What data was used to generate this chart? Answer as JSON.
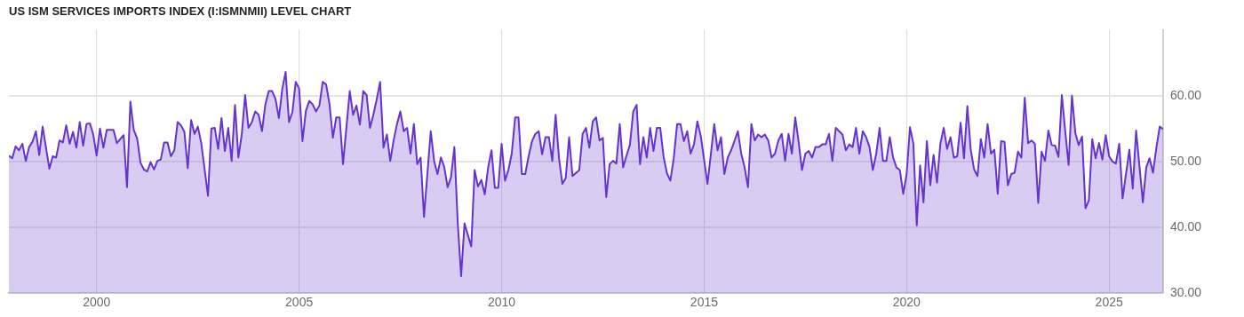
{
  "chart_data": {
    "type": "area",
    "title": "US ISM SERVICES IMPORTS INDEX (I:ISMNMII) LEVEL CHART",
    "x": [
      "1997-11",
      "1997-12",
      "1998-01",
      "1998-02",
      "1998-03",
      "1998-04",
      "1998-05",
      "1998-06",
      "1998-07",
      "1998-08",
      "1998-09",
      "1998-11",
      "1998-12",
      "1999-01",
      "1999-02",
      "1999-03",
      "1999-04",
      "1999-05",
      "1999-06",
      "1999-07",
      "1999-08",
      "1999-09",
      "1999-10",
      "1999-11",
      "1999-12",
      "2000-01",
      "2000-02",
      "2000-03",
      "2000-04",
      "2000-06",
      "2000-07",
      "2000-09",
      "2000-10",
      "2000-11",
      "2000-12",
      "2001-01",
      "2001-02",
      "2001-03",
      "2001-04",
      "2001-05",
      "2001-06",
      "2001-07",
      "2001-08",
      "2001-09",
      "2001-10",
      "2001-11",
      "2001-12",
      "2002-01",
      "2002-02",
      "2002-03",
      "2002-04",
      "2002-05",
      "2002-06",
      "2002-07",
      "2002-08",
      "2002-10",
      "2002-11",
      "2002-12",
      "2003-01",
      "2003-02",
      "2003-03",
      "2003-04",
      "2003-05",
      "2003-06",
      "2003-07",
      "2003-08",
      "2003-09",
      "2003-10",
      "2003-11",
      "2003-12",
      "2004-01",
      "2004-02",
      "2004-03",
      "2004-04",
      "2004-05",
      "2004-06",
      "2004-07",
      "2004-08",
      "2004-09",
      "2004-10",
      "2004-11",
      "2004-12",
      "2005-01",
      "2005-02",
      "2005-03",
      "2005-04",
      "2005-05",
      "2005-06",
      "2005-07",
      "2005-08",
      "2005-09",
      "2005-10",
      "2005-11",
      "2005-12",
      "2006-01",
      "2006-02",
      "2006-04",
      "2006-05",
      "2006-06",
      "2006-07",
      "2006-08",
      "2006-09",
      "2006-10",
      "2006-11",
      "2006-12",
      "2007-01",
      "2007-02",
      "2007-03",
      "2007-04",
      "2007-05",
      "2007-06",
      "2007-07",
      "2007-08",
      "2007-09",
      "2007-10",
      "2007-11",
      "2007-12",
      "2008-01",
      "2008-02",
      "2008-04",
      "2008-05",
      "2008-06",
      "2008-07",
      "2008-08",
      "2008-09",
      "2008-10",
      "2008-11",
      "2008-12",
      "2009-01",
      "2009-02",
      "2009-04",
      "2009-05",
      "2009-06",
      "2009-07",
      "2009-08",
      "2009-09",
      "2009-10",
      "2009-11",
      "2009-12",
      "2010-01",
      "2010-02",
      "2010-03",
      "2010-04",
      "2010-05",
      "2010-06",
      "2010-07",
      "2010-08",
      "2010-09",
      "2010-10",
      "2010-11",
      "2010-12",
      "2011-01",
      "2011-02",
      "2011-03",
      "2011-04",
      "2011-05",
      "2011-06",
      "2011-07",
      "2011-08",
      "2011-09",
      "2011-10",
      "2011-12",
      "2012-01",
      "2012-02",
      "2012-03",
      "2012-04",
      "2012-05",
      "2012-06",
      "2012-07",
      "2012-08",
      "2012-09",
      "2012-10",
      "2012-11",
      "2012-12",
      "2013-01",
      "2013-02",
      "2013-03",
      "2013-04",
      "2013-05",
      "2013-06",
      "2013-07",
      "2013-08",
      "2013-09",
      "2013-10",
      "2013-11",
      "2013-12",
      "2014-01",
      "2014-02",
      "2014-03",
      "2014-04",
      "2014-05",
      "2014-06",
      "2014-07",
      "2014-08",
      "2014-09",
      "2014-10",
      "2014-11",
      "2014-12",
      "2015-02",
      "2015-04",
      "2015-05",
      "2015-06",
      "2015-07",
      "2015-08",
      "2015-09",
      "2015-11",
      "2015-12",
      "2016-01",
      "2016-02",
      "2016-03",
      "2016-04",
      "2016-05",
      "2016-06",
      "2016-07",
      "2016-08",
      "2016-09",
      "2016-10",
      "2016-11",
      "2016-12",
      "2017-01",
      "2017-02",
      "2017-03",
      "2017-04",
      "2017-05",
      "2017-06",
      "2017-07",
      "2017-08",
      "2017-09",
      "2017-10",
      "2017-11",
      "2017-12",
      "2018-01",
      "2018-02",
      "2018-03",
      "2018-04",
      "2018-05",
      "2018-06",
      "2018-07",
      "2018-08",
      "2018-09",
      "2018-10",
      "2018-11",
      "2018-12",
      "2019-01",
      "2019-02",
      "2019-03",
      "2019-04",
      "2019-05",
      "2019-06",
      "2019-07",
      "2019-08",
      "2019-09",
      "2019-10",
      "2019-11",
      "2019-12",
      "2020-01",
      "2020-02",
      "2020-03",
      "2020-04",
      "2020-05",
      "2020-06",
      "2020-07",
      "2020-08",
      "2020-09",
      "2020-10",
      "2020-11",
      "2020-12",
      "2021-01",
      "2021-02",
      "2021-03",
      "2021-04",
      "2021-05",
      "2021-06",
      "2021-07",
      "2021-08",
      "2021-09",
      "2021-10",
      "2021-11",
      "2021-12",
      "2022-01",
      "2022-02",
      "2022-03",
      "2022-04",
      "2022-05",
      "2022-06",
      "2022-07",
      "2022-08",
      "2022-09",
      "2022-10",
      "2022-11",
      "2022-12",
      "2023-01",
      "2023-02",
      "2023-03",
      "2023-04",
      "2023-05",
      "2023-06",
      "2023-07",
      "2023-08",
      "2023-09",
      "2023-10",
      "2023-11",
      "2023-12",
      "2024-01",
      "2024-02",
      "2024-03",
      "2024-04",
      "2024-05",
      "2024-06",
      "2024-07",
      "2024-08",
      "2024-09",
      "2024-10",
      "2024-11",
      "2024-12",
      "2025-01",
      "2025-02",
      "2025-03",
      "2025-04",
      "2025-05",
      "2025-07",
      "2025-08",
      "2025-09",
      "2025-11",
      "2025-12",
      "2026-01",
      "2026-02",
      "2026-03",
      "2026-04",
      "2026-05"
    ],
    "values": [
      50.9,
      50.5,
      52.3,
      51.7,
      52.7,
      50.1,
      52.2,
      53.0,
      54.6,
      51.0,
      55.3,
      48.9,
      50.8,
      50.6,
      53.2,
      52.9,
      55.5,
      52.7,
      54.5,
      52.1,
      56.0,
      52.4,
      55.7,
      55.8,
      54.1,
      50.9,
      55.0,
      52.1,
      54.8,
      54.8,
      52.8,
      54.0,
      46.1,
      59.1,
      54.8,
      53.5,
      49.8,
      48.8,
      48.5,
      49.9,
      48.8,
      50.1,
      50.3,
      52.9,
      52.9,
      50.8,
      51.7,
      56.0,
      55.5,
      54.5,
      49.0,
      56.3,
      54.2,
      55.3,
      52.8,
      44.8,
      55.0,
      55.1,
      51.9,
      56.6,
      51.6,
      55.1,
      50.1,
      58.6,
      50.6,
      54.1,
      60.1,
      55.1,
      56.0,
      57.6,
      57.1,
      54.6,
      58.7,
      60.7,
      60.7,
      59.5,
      56.6,
      61.0,
      63.6,
      56.0,
      57.5,
      62.1,
      61.1,
      53.1,
      57.7,
      59.2,
      58.7,
      57.6,
      58.5,
      62.1,
      61.7,
      58.7,
      53.6,
      56.7,
      56.7,
      49.6,
      60.7,
      57.1,
      58.5,
      55.6,
      60.7,
      60.1,
      55.1,
      57.1,
      59.5,
      62.1,
      52.1,
      54.1,
      50.1,
      53.2,
      55.7,
      57.6,
      54.6,
      55.1,
      51.2,
      55.7,
      49.6,
      50.6,
      41.6,
      54.6,
      50.1,
      48.1,
      50.6,
      49.2,
      46.1,
      47.6,
      52.2,
      40.7,
      32.6,
      40.6,
      37.1,
      48.7,
      46.2,
      47.2,
      45.0,
      49.1,
      51.7,
      46.0,
      46.0,
      52.7,
      47.1,
      48.7,
      51.2,
      56.7,
      56.7,
      48.1,
      48.1,
      50.8,
      53.1,
      54.2,
      54.6,
      51.1,
      53.7,
      53.7,
      50.1,
      57.1,
      50.5,
      46.6,
      47.5,
      53.7,
      47.8,
      48.7,
      54.2,
      55.1,
      52.1,
      56.1,
      56.7,
      53.2,
      53.6,
      44.6,
      49.6,
      50.1,
      49.7,
      55.7,
      49.1,
      50.9,
      52.5,
      57.6,
      58.6,
      49.6,
      53.7,
      50.6,
      55.1,
      51.6,
      55.1,
      55.1,
      50.7,
      48.2,
      47.1,
      50.5,
      55.7,
      55.7,
      53.1,
      54.6,
      51.2,
      52.6,
      56.1,
      53.9,
      46.6,
      55.7,
      51.7,
      53.7,
      48.1,
      50.6,
      51.7,
      54.6,
      51.2,
      49.1,
      46.1,
      55.7,
      53.2,
      54.1,
      53.7,
      54.1,
      53.2,
      50.6,
      51.2,
      53.2,
      54.2,
      50.1,
      54.2,
      51.2,
      56.7,
      53.0,
      48.7,
      51.2,
      51.6,
      50.6,
      52.2,
      52.2,
      52.6,
      52.6,
      54.2,
      50.1,
      55.1,
      54.6,
      54.1,
      51.7,
      52.6,
      52.2,
      55.1,
      51.2,
      54.6,
      53.7,
      52.2,
      48.7,
      51.2,
      55.1,
      50.1,
      50.1,
      53.7,
      50.6,
      49.1,
      48.7,
      45.1,
      48.1,
      55.2,
      52.7,
      40.3,
      49.4,
      43.8,
      53.1,
      46.4,
      51.0,
      46.8,
      52.7,
      55.1,
      51.9,
      53.7,
      50.6,
      50.8,
      55.9,
      50.5,
      58.4,
      51.8,
      48.8,
      47.8,
      53.4,
      50.6,
      55.7,
      51.2,
      51.8,
      45.1,
      53.1,
      53.0,
      46.4,
      48.1,
      48.3,
      51.5,
      50.6,
      59.7,
      52.8,
      53.2,
      52.7,
      43.7,
      51.5,
      50.1,
      54.7,
      52.5,
      52.4,
      50.7,
      60.1,
      54.6,
      49.5,
      60.0,
      54.3,
      52.5,
      53.8,
      42.9,
      44.1,
      53.4,
      50.5,
      52.8,
      50.3,
      54.0,
      50.8,
      50.0,
      49.7,
      52.7,
      44.4,
      51.8,
      45.9,
      54.7,
      43.8,
      49.1,
      50.5,
      48.3,
      52.1,
      55.3,
      54.9
    ],
    "color": "#6633cc",
    "marker": "none",
    "xlim": [
      "1997-11",
      "2026-05"
    ],
    "xticks": [
      "2000",
      "2005",
      "2010",
      "2015",
      "2020",
      "2025"
    ],
    "ylim": [
      30,
      70
    ],
    "yticks": [
      {
        "value": 30,
        "label": "30.00"
      },
      {
        "value": 40,
        "label": "40.00"
      },
      {
        "value": 50,
        "label": "50.00"
      },
      {
        "value": 60,
        "label": "60.00"
      }
    ],
    "grid": true
  }
}
